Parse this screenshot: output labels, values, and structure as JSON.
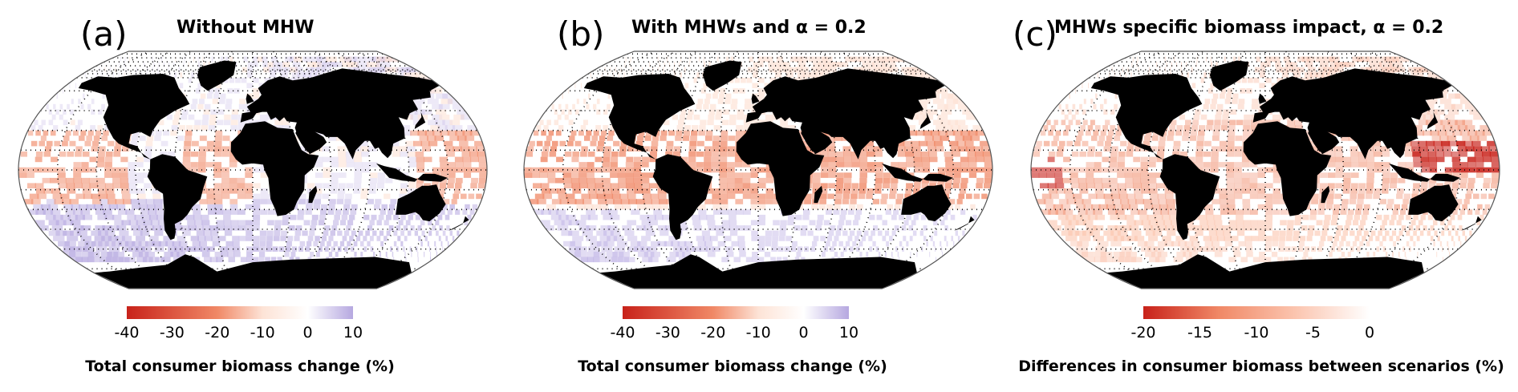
{
  "panels": [
    {
      "letter": "(a)",
      "title": "Without MHW",
      "colorbar": {
        "ticks": [
          "-40",
          "-30",
          "-20",
          "-10",
          "0",
          "10"
        ],
        "min": -40,
        "max": 10,
        "colors": [
          "#c8221a",
          "#f08866",
          "#fde3d6",
          "#ffffff",
          "#b6a8e0"
        ],
        "label": "Total consumer biomass change (%)"
      },
      "ocean_pattern": "mixed"
    },
    {
      "letter": "(b)",
      "title": "With MHWs and α = 0.2",
      "colorbar": {
        "ticks": [
          "-40",
          "-30",
          "-20",
          "-10",
          "0",
          "10"
        ],
        "min": -40,
        "max": 10,
        "colors": [
          "#c8221a",
          "#f08866",
          "#fde3d6",
          "#ffffff",
          "#b6a8e0"
        ],
        "label": "Total consumer biomass change (%)"
      },
      "ocean_pattern": "redder"
    },
    {
      "letter": "(c)",
      "title": "MHWs specific biomass impact, α = 0.2",
      "colorbar": {
        "ticks": [
          "-20",
          "-15",
          "-10",
          "-5",
          "0"
        ],
        "min": -20,
        "max": 0,
        "colors": [
          "#c8221a",
          "#f08866",
          "#fbc4ae",
          "#ffffff"
        ],
        "label": "Differences in consumer biomass between scenarios (%)"
      },
      "ocean_pattern": "difference"
    }
  ],
  "colors": {
    "land": "#000000",
    "frame": "#555555",
    "graticule": "#000000"
  }
}
